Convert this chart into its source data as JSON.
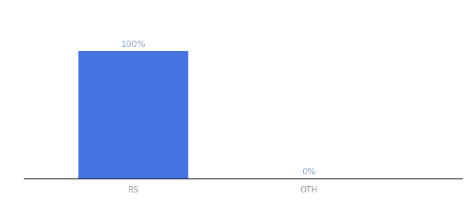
{
  "categories": [
    "RS",
    "OTH"
  ],
  "values": [
    100,
    0
  ],
  "bar_color": "#4472e0",
  "label_color": "#8fa8d8",
  "label_fontsize": 9,
  "xlabel_fontsize": 8.5,
  "ylim": [
    0,
    120
  ],
  "background_color": "#ffffff",
  "axis_line_color": "#111111",
  "tick_color": "#999999",
  "bar_width": 0.25,
  "annotations": [
    "100%",
    "0%"
  ],
  "x_positions": [
    0.25,
    0.65
  ]
}
